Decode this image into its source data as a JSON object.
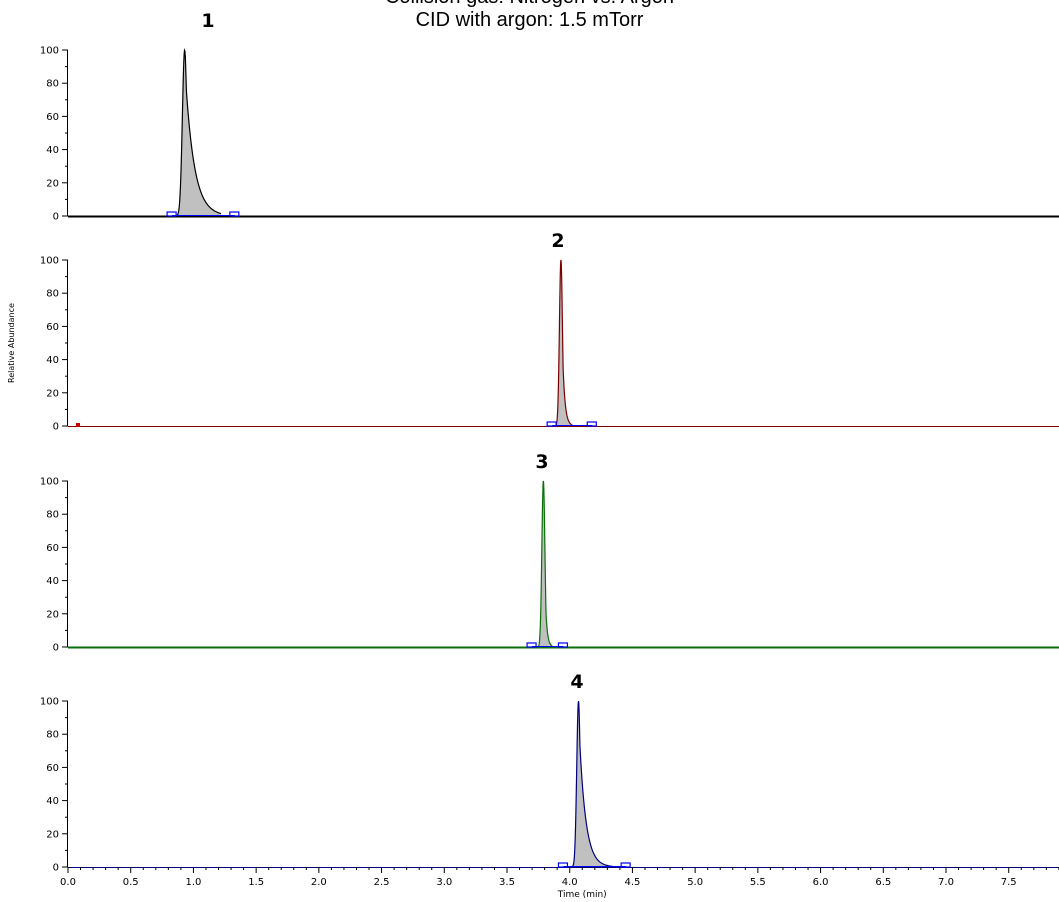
{
  "header": {
    "title_line1": "Collision gas: Nitrogen vs. Argon",
    "title_line2": "CID with argon: 1.5 mTorr"
  },
  "chart_data": {
    "type": "line",
    "xlabel": "Time (min)",
    "ylabel": "Relative Abundance",
    "xlim": [
      0.0,
      7.9
    ],
    "ylim": [
      0,
      100
    ],
    "x_ticks": [
      "0.0",
      "0.5",
      "1.0",
      "1.5",
      "2.0",
      "2.5",
      "3.0",
      "3.5",
      "4.0",
      "4.5",
      "5.0",
      "5.5",
      "6.0",
      "6.5",
      "7.0",
      "7.5"
    ],
    "y_ticks": [
      "0",
      "20",
      "40",
      "60",
      "80",
      "100"
    ],
    "panels": [
      {
        "label": "1",
        "color": "#000000",
        "peak": {
          "apex": 0.93,
          "height": 100,
          "start": 0.86,
          "end": 1.22,
          "width_left": 0.018,
          "tail_right": 0.07
        },
        "baseline_markers": [
          0.83,
          1.33
        ]
      },
      {
        "label": "2",
        "color": "#7a0000",
        "peak": {
          "apex": 3.93,
          "height": 100,
          "start": 3.88,
          "end": 4.02,
          "width_left": 0.012,
          "tail_right": 0.018
        },
        "baseline_markers": [
          3.86,
          4.18
        ],
        "extra_marks": [
          {
            "x": 0.08,
            "color": "#cc0000"
          }
        ]
      },
      {
        "label": "3",
        "color": "#0a6e0a",
        "peak": {
          "apex": 3.79,
          "height": 100,
          "start": 3.74,
          "end": 3.86,
          "width_left": 0.012,
          "tail_right": 0.014
        },
        "baseline_markers": [
          3.7,
          3.95
        ]
      },
      {
        "label": "4",
        "color": "#000080",
        "peak": {
          "apex": 4.07,
          "height": 100,
          "start": 4.02,
          "end": 4.34,
          "width_left": 0.014,
          "tail_right": 0.05
        },
        "baseline_markers": [
          3.95,
          4.45
        ]
      }
    ]
  }
}
